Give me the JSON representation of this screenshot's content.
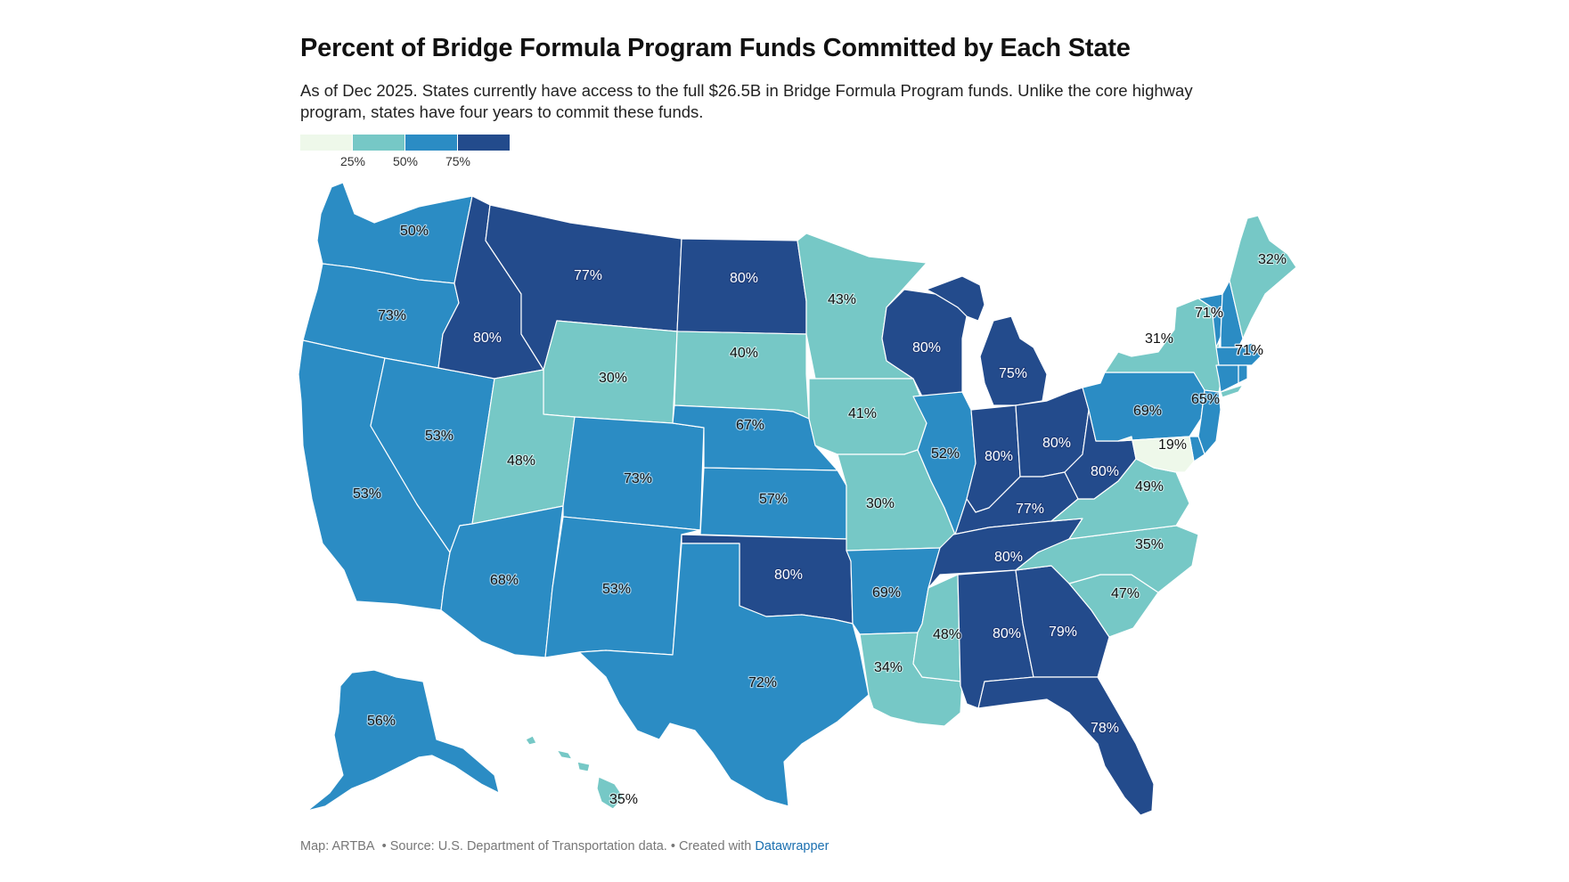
{
  "title": "Percent of Bridge Formula Program Funds Committed by Each State",
  "subtitle": "As of Dec 2025. States currently have access to the full $26.5B in Bridge Formula Program funds. Unlike the core highway program, states have four years to commit these funds.",
  "legend": {
    "colors": [
      "#eef8ea",
      "#76c8c6",
      "#2b8cc4",
      "#234b8c"
    ],
    "ticks": [
      "25%",
      "50%",
      "75%"
    ]
  },
  "footer": {
    "map_credit": "Map: ARTBA",
    "source": "• Source: U.S. Department of Transportation data.",
    "created": "• Created with",
    "tool": "Datawrapper"
  },
  "states": [
    {
      "id": "WA",
      "value": 50,
      "label": "50%"
    },
    {
      "id": "OR",
      "value": 73,
      "label": "73%"
    },
    {
      "id": "CA",
      "value": 53,
      "label": "53%"
    },
    {
      "id": "NV",
      "value": 53,
      "label": "53%"
    },
    {
      "id": "ID",
      "value": 80,
      "label": "80%"
    },
    {
      "id": "MT",
      "value": 77,
      "label": "77%"
    },
    {
      "id": "WY",
      "value": 30,
      "label": "30%"
    },
    {
      "id": "UT",
      "value": 48,
      "label": "48%"
    },
    {
      "id": "AZ",
      "value": 68,
      "label": "68%"
    },
    {
      "id": "CO",
      "value": 73,
      "label": "73%"
    },
    {
      "id": "NM",
      "value": 53,
      "label": "53%"
    },
    {
      "id": "ND",
      "value": 80,
      "label": "80%"
    },
    {
      "id": "SD",
      "value": 40,
      "label": "40%"
    },
    {
      "id": "NE",
      "value": 67,
      "label": "67%"
    },
    {
      "id": "KS",
      "value": 57,
      "label": "57%"
    },
    {
      "id": "OK",
      "value": 80,
      "label": "80%"
    },
    {
      "id": "TX",
      "value": 72,
      "label": "72%"
    },
    {
      "id": "MN",
      "value": 43,
      "label": "43%"
    },
    {
      "id": "IA",
      "value": 41,
      "label": "41%"
    },
    {
      "id": "MO",
      "value": 30,
      "label": "30%"
    },
    {
      "id": "AR",
      "value": 69,
      "label": "69%"
    },
    {
      "id": "LA",
      "value": 34,
      "label": "34%"
    },
    {
      "id": "WI",
      "value": 80,
      "label": "80%"
    },
    {
      "id": "IL",
      "value": 52,
      "label": "52%"
    },
    {
      "id": "MI",
      "value": 75,
      "label": "75%"
    },
    {
      "id": "IN",
      "value": 80,
      "label": "80%"
    },
    {
      "id": "OH",
      "value": 80,
      "label": "80%"
    },
    {
      "id": "KY",
      "value": 77,
      "label": "77%"
    },
    {
      "id": "TN",
      "value": 80,
      "label": "80%"
    },
    {
      "id": "MS",
      "value": 48,
      "label": "48%"
    },
    {
      "id": "AL",
      "value": 80,
      "label": "80%"
    },
    {
      "id": "GA",
      "value": 79,
      "label": "79%"
    },
    {
      "id": "FL",
      "value": 78,
      "label": "78%"
    },
    {
      "id": "SC",
      "value": 47,
      "label": "47%"
    },
    {
      "id": "NC",
      "value": 35,
      "label": "35%"
    },
    {
      "id": "VA",
      "value": 49,
      "label": "49%"
    },
    {
      "id": "WV",
      "value": 80,
      "label": "80%"
    },
    {
      "id": "PA",
      "value": 69,
      "label": "69%"
    },
    {
      "id": "NY",
      "value": 31,
      "label": "31%"
    },
    {
      "id": "VT",
      "value": 71,
      "label": "71%"
    },
    {
      "id": "NH",
      "value": 71,
      "label": "71%"
    },
    {
      "id": "ME",
      "value": 32,
      "label": "32%"
    },
    {
      "id": "MA",
      "value": 71,
      "label": "71%"
    },
    {
      "id": "CT",
      "value": 71,
      "label": "71%"
    },
    {
      "id": "RI",
      "value": 71,
      "label": ""
    },
    {
      "id": "NJ",
      "value": 65,
      "label": "65%"
    },
    {
      "id": "DE",
      "value": 69,
      "label": ""
    },
    {
      "id": "MD",
      "value": 19,
      "label": "19%"
    },
    {
      "id": "AK",
      "value": 56,
      "label": "56%"
    },
    {
      "id": "HI",
      "value": 35,
      "label": "35%"
    }
  ]
}
